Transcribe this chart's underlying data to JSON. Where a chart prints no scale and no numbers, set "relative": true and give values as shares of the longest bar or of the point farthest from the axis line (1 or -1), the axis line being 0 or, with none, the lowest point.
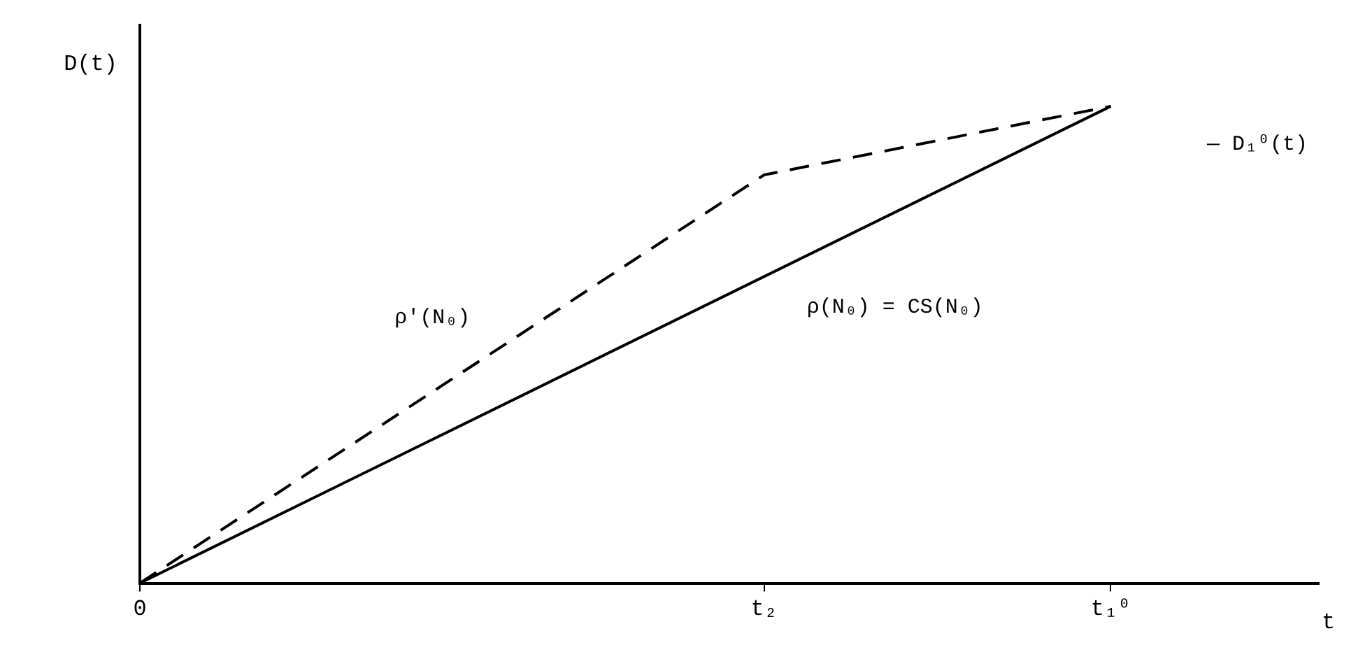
{
  "chart_data": {
    "type": "line",
    "xlabel": "t",
    "ylabel": "D(t)",
    "relative": true,
    "tick_labels": "x",
    "grid": false,
    "legend": false,
    "marker": "none",
    "categories": [
      "0",
      null,
      null,
      null,
      null,
      null,
      null,
      null,
      null,
      "t₂",
      null,
      null,
      null,
      null,
      "t₁⁰",
      null,
      null,
      null
    ],
    "series": [
      {
        "name": "ρ(N₀) = CS(N₀)",
        "color": "#000000",
        "values": [
          0,
          null,
          null,
          null,
          null,
          null,
          null,
          null,
          null,
          null,
          null,
          null,
          null,
          null,
          1,
          null,
          null,
          null
        ],
        "line_style": "solid"
      },
      {
        "name": "ρ'(N₀)",
        "color": "#000000",
        "values": [
          0,
          null,
          null,
          null,
          null,
          null,
          null,
          null,
          null,
          0.856,
          null,
          null,
          null,
          null,
          1,
          null,
          null,
          null
        ],
        "line_style": "dashed"
      }
    ],
    "annotations": [
      "— D₁⁰(t)"
    ]
  }
}
